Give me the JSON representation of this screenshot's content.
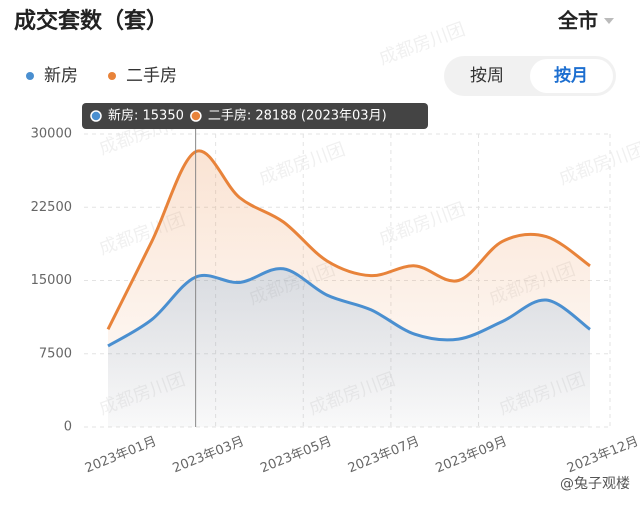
{
  "header": {
    "title": "成交套数（套）",
    "region": "全市",
    "toggle": [
      "按周",
      "按月"
    ]
  },
  "chart_data": {
    "type": "line",
    "categories": [
      "2023年01月",
      null,
      "2023年03月",
      null,
      "2023年05月",
      null,
      "2023年07月",
      null,
      "2023年09月",
      null,
      null,
      "2023年12月"
    ],
    "series": [
      {
        "name": "新房",
        "color": "#4a8fd0",
        "values": [
          8300,
          11000,
          15350,
          14800,
          16200,
          13500,
          12000,
          9500,
          9000,
          10800,
          13000,
          10000
        ]
      },
      {
        "name": "二手房",
        "color": "#e8833a",
        "values": [
          10000,
          19000,
          28188,
          23500,
          21000,
          17000,
          15500,
          16500,
          15000,
          19000,
          19500,
          16500
        ]
      }
    ],
    "ylim": [
      0,
      30000
    ],
    "yticks": [
      0,
      7500,
      15000,
      22500,
      30000
    ],
    "grid": true,
    "tooltip": [
      "新房: 15350",
      "二手房: 28188 (2023年03月)"
    ]
  },
  "watermark": "成都房川团",
  "credit": "@兔子观楼"
}
